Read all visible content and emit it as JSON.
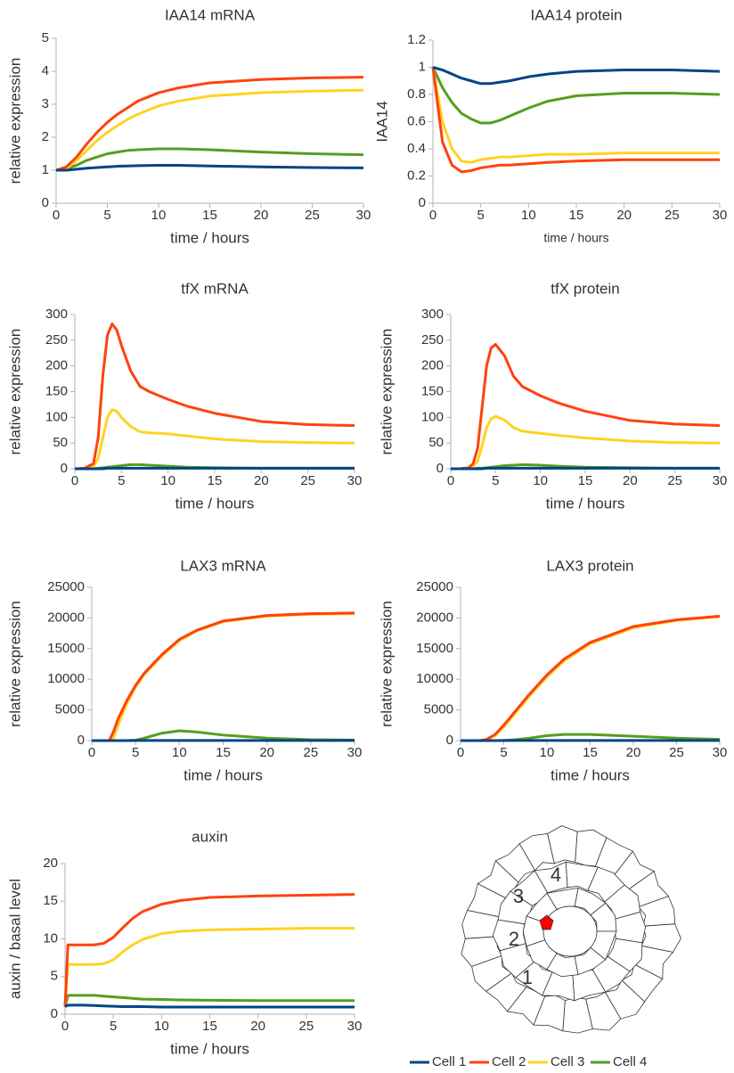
{
  "chart_data": [
    {
      "type": "line",
      "title": "IAA14 mRNA",
      "x_label": "time / hours",
      "y_label": "relative expression",
      "x": [
        0,
        1,
        2,
        3,
        4,
        5,
        6,
        7,
        8,
        10,
        12,
        15,
        20,
        25,
        30
      ],
      "xlim": [
        0,
        30
      ],
      "xticks": [
        0,
        5,
        10,
        15,
        20,
        25,
        30
      ],
      "ylim": [
        0,
        5
      ],
      "yticks": [
        0,
        1,
        2,
        3,
        4,
        5
      ],
      "series": [
        {
          "name": "Cell 1",
          "color": "#004586",
          "values": [
            1,
            1,
            1.03,
            1.06,
            1.08,
            1.1,
            1.12,
            1.13,
            1.14,
            1.15,
            1.15,
            1.13,
            1.1,
            1.08,
            1.07
          ]
        },
        {
          "name": "Cell 2",
          "color": "#ff420e",
          "values": [
            1,
            1.1,
            1.4,
            1.8,
            2.15,
            2.45,
            2.7,
            2.9,
            3.1,
            3.35,
            3.5,
            3.65,
            3.75,
            3.8,
            3.82
          ]
        },
        {
          "name": "Cell 3",
          "color": "#ffd320",
          "values": [
            1,
            1.05,
            1.3,
            1.6,
            1.9,
            2.15,
            2.35,
            2.55,
            2.7,
            2.95,
            3.1,
            3.25,
            3.35,
            3.4,
            3.43
          ]
        },
        {
          "name": "Cell 4",
          "color": "#579d1c",
          "values": [
            1,
            1.05,
            1.15,
            1.3,
            1.4,
            1.5,
            1.55,
            1.6,
            1.62,
            1.65,
            1.65,
            1.62,
            1.55,
            1.5,
            1.47
          ]
        }
      ]
    },
    {
      "type": "line",
      "title": "IAA14 protein",
      "x_label": "time / hours",
      "y_label": "IAA14",
      "x": [
        0,
        1,
        2,
        3,
        4,
        5,
        6,
        7,
        8,
        10,
        12,
        15,
        20,
        25,
        30
      ],
      "xlim": [
        0,
        30
      ],
      "xticks": [
        0,
        5,
        10,
        15,
        20,
        25,
        30
      ],
      "ylim": [
        0,
        1.2
      ],
      "yticks": [
        0,
        0.2,
        0.4,
        0.6,
        0.8,
        1,
        1.2
      ],
      "series": [
        {
          "color": "#004586",
          "values": [
            1,
            0.98,
            0.95,
            0.92,
            0.9,
            0.88,
            0.88,
            0.89,
            0.9,
            0.93,
            0.95,
            0.97,
            0.98,
            0.98,
            0.97
          ]
        },
        {
          "color": "#ff420e",
          "values": [
            1,
            0.45,
            0.28,
            0.23,
            0.24,
            0.26,
            0.27,
            0.28,
            0.28,
            0.29,
            0.3,
            0.31,
            0.32,
            0.32,
            0.32
          ]
        },
        {
          "color": "#ffd320",
          "values": [
            1,
            0.6,
            0.4,
            0.31,
            0.3,
            0.32,
            0.33,
            0.34,
            0.34,
            0.35,
            0.36,
            0.36,
            0.37,
            0.37,
            0.37
          ]
        },
        {
          "color": "#579d1c",
          "values": [
            1,
            0.85,
            0.74,
            0.66,
            0.62,
            0.59,
            0.59,
            0.61,
            0.64,
            0.7,
            0.75,
            0.79,
            0.81,
            0.81,
            0.8
          ]
        }
      ]
    },
    {
      "type": "line",
      "title": "tfX mRNA",
      "x_label": "time / hours",
      "y_label": "relative expression",
      "x": [
        0,
        1,
        2,
        2.5,
        3,
        3.5,
        4,
        4.5,
        5,
        6,
        7,
        8,
        10,
        12,
        15,
        20,
        25,
        30
      ],
      "xlim": [
        0,
        30
      ],
      "xticks": [
        0,
        5,
        10,
        15,
        20,
        25,
        30
      ],
      "ylim": [
        0,
        300
      ],
      "yticks": [
        0,
        50,
        100,
        150,
        200,
        250,
        300
      ],
      "series": [
        {
          "color": "#004586",
          "values": [
            0,
            0,
            0,
            0,
            0,
            1,
            1,
            1,
            1,
            1,
            1,
            1,
            1,
            1,
            1,
            1,
            1,
            1
          ]
        },
        {
          "color": "#ff420e",
          "values": [
            0,
            1,
            10,
            60,
            180,
            260,
            282,
            270,
            240,
            190,
            160,
            150,
            135,
            122,
            108,
            92,
            86,
            84
          ]
        },
        {
          "color": "#ffd320",
          "values": [
            0,
            0,
            4,
            20,
            60,
            100,
            115,
            112,
            100,
            82,
            72,
            70,
            68,
            64,
            58,
            53,
            51,
            50
          ]
        },
        {
          "color": "#579d1c",
          "values": [
            0,
            0,
            0,
            1,
            2,
            3,
            4,
            5,
            6,
            8,
            8,
            7,
            5,
            3,
            2,
            1,
            1,
            1
          ]
        }
      ]
    },
    {
      "type": "line",
      "title": "tfX protein",
      "x_label": "time / hours",
      "y_label": "relative expression",
      "x": [
        0,
        1,
        2,
        2.5,
        3,
        3.5,
        4,
        4.5,
        5,
        6,
        7,
        8,
        10,
        12,
        15,
        20,
        25,
        30
      ],
      "xlim": [
        0,
        30
      ],
      "xticks": [
        0,
        5,
        10,
        15,
        20,
        25,
        30
      ],
      "ylim": [
        0,
        300
      ],
      "yticks": [
        0,
        50,
        100,
        150,
        200,
        250,
        300
      ],
      "series": [
        {
          "color": "#004586",
          "values": [
            0,
            0,
            0,
            0,
            0,
            0,
            1,
            1,
            1,
            1,
            1,
            1,
            1,
            1,
            1,
            1,
            1,
            1
          ]
        },
        {
          "color": "#ff420e",
          "values": [
            0,
            0,
            2,
            10,
            40,
            120,
            200,
            235,
            242,
            220,
            180,
            160,
            142,
            128,
            112,
            94,
            87,
            84
          ]
        },
        {
          "color": "#ffd320",
          "values": [
            0,
            0,
            1,
            5,
            15,
            45,
            80,
            97,
            102,
            95,
            80,
            73,
            69,
            65,
            60,
            54,
            51,
            50
          ]
        },
        {
          "color": "#579d1c",
          "values": [
            0,
            0,
            0,
            0,
            1,
            1,
            2,
            3,
            4,
            6,
            7,
            8,
            7,
            5,
            3,
            2,
            1,
            1
          ]
        }
      ]
    },
    {
      "type": "line",
      "title": "LAX3 mRNA",
      "x_label": "time / hours",
      "y_label": "relative expression",
      "x": [
        0,
        1,
        2,
        2.5,
        3,
        4,
        5,
        6,
        8,
        10,
        12,
        15,
        20,
        25,
        30
      ],
      "xlim": [
        0,
        30
      ],
      "xticks": [
        0,
        5,
        10,
        15,
        20,
        25,
        30
      ],
      "ylim": [
        0,
        25000
      ],
      "yticks": [
        0,
        5000,
        10000,
        15000,
        20000,
        25000
      ],
      "series": [
        {
          "color": "#004586",
          "values": [
            0,
            0,
            0,
            0,
            0,
            0,
            10,
            10,
            10,
            10,
            10,
            10,
            10,
            10,
            10
          ]
        },
        {
          "color": "#ff420e",
          "values": [
            0,
            0,
            0,
            1500,
            3500,
            6500,
            9000,
            11000,
            14000,
            16500,
            18000,
            19500,
            20400,
            20700,
            20800
          ]
        },
        {
          "color": "#ffd320",
          "values": [
            0,
            0,
            0,
            500,
            2500,
            6000,
            8700,
            10800,
            13800,
            16300,
            17900,
            19400,
            20300,
            20600,
            20700
          ]
        },
        {
          "color": "#579d1c",
          "values": [
            0,
            0,
            0,
            0,
            0,
            0,
            50,
            400,
            1200,
            1600,
            1400,
            900,
            400,
            150,
            80
          ]
        }
      ]
    },
    {
      "type": "line",
      "title": "LAX3 protein",
      "x_label": "time / hours",
      "y_label": "relative expression",
      "x": [
        0,
        1,
        2,
        2.5,
        3,
        4,
        5,
        6,
        8,
        10,
        12,
        15,
        20,
        25,
        30
      ],
      "xlim": [
        0,
        30
      ],
      "xticks": [
        0,
        5,
        10,
        15,
        20,
        25,
        30
      ],
      "ylim": [
        0,
        25000
      ],
      "yticks": [
        0,
        5000,
        10000,
        15000,
        20000,
        25000
      ],
      "series": [
        {
          "color": "#004586",
          "values": [
            0,
            0,
            0,
            0,
            0,
            0,
            10,
            10,
            10,
            10,
            10,
            10,
            10,
            10,
            10
          ]
        },
        {
          "color": "#ff420e",
          "values": [
            0,
            0,
            0,
            50,
            200,
            1000,
            2500,
            4200,
            7600,
            10700,
            13300,
            16000,
            18600,
            19700,
            20300
          ]
        },
        {
          "color": "#ffd320",
          "values": [
            0,
            0,
            0,
            20,
            100,
            800,
            2200,
            3900,
            7300,
            10400,
            13000,
            15800,
            18400,
            19600,
            20200
          ]
        },
        {
          "color": "#579d1c",
          "values": [
            0,
            0,
            0,
            0,
            0,
            0,
            20,
            100,
            400,
            800,
            1000,
            1000,
            700,
            400,
            200
          ]
        }
      ]
    },
    {
      "type": "line",
      "title": "auxin",
      "x_label": "time / hours",
      "y_label": "auxin / basal level",
      "x": [
        0,
        0.3,
        1,
        2,
        3,
        4,
        5,
        6,
        7,
        8,
        10,
        12,
        15,
        20,
        25,
        30
      ],
      "xlim": [
        0,
        30
      ],
      "xticks": [
        0,
        5,
        10,
        15,
        20,
        25,
        30
      ],
      "ylim": [
        0,
        20
      ],
      "yticks": [
        0,
        5,
        10,
        15,
        20
      ],
      "series": [
        {
          "color": "#004586",
          "values": [
            1,
            1.2,
            1.2,
            1.2,
            1.15,
            1.1,
            1.05,
            1,
            1,
            1,
            0.95,
            0.95,
            0.95,
            0.95,
            0.95,
            0.95
          ]
        },
        {
          "color": "#ff420e",
          "values": [
            1,
            9.2,
            9.2,
            9.2,
            9.2,
            9.4,
            10.2,
            11.5,
            12.7,
            13.6,
            14.6,
            15.1,
            15.5,
            15.7,
            15.8,
            15.9
          ]
        },
        {
          "color": "#ffd320",
          "values": [
            1,
            6.6,
            6.6,
            6.6,
            6.6,
            6.7,
            7.2,
            8.3,
            9.2,
            9.9,
            10.7,
            11,
            11.2,
            11.3,
            11.4,
            11.4
          ]
        },
        {
          "color": "#579d1c",
          "values": [
            1,
            2.5,
            2.5,
            2.5,
            2.5,
            2.4,
            2.3,
            2.2,
            2.1,
            2,
            1.95,
            1.9,
            1.85,
            1.8,
            1.8,
            1.8
          ]
        }
      ]
    }
  ],
  "cell_diagram": {
    "labels": [
      "1",
      "2",
      "3",
      "4"
    ]
  }
}
